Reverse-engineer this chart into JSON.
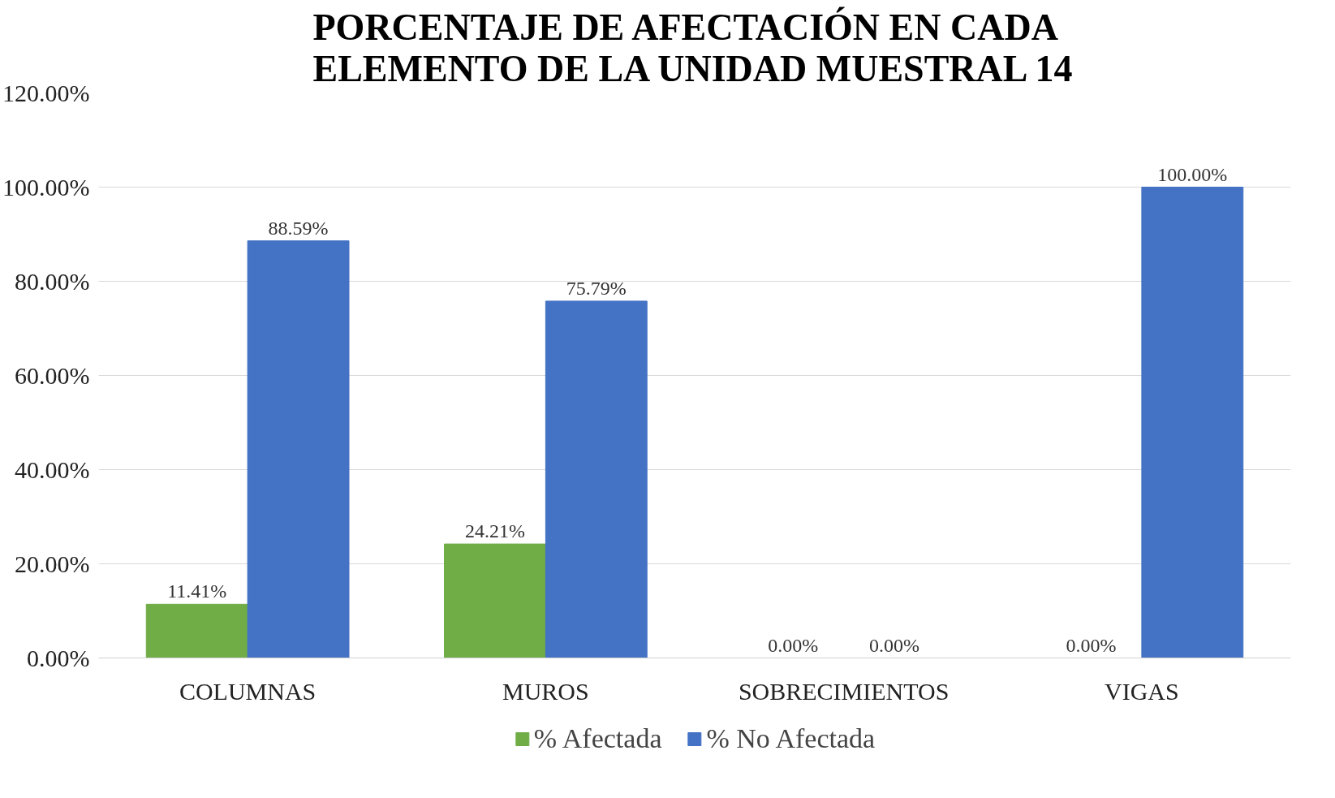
{
  "chart_data": {
    "type": "bar",
    "title": "PORCENTAJE DE AFECTACIÓN EN CADA\nELEMENTO DE LA UNIDAD MUESTRAL 14",
    "categories": [
      "COLUMNAS",
      "MUROS",
      "SOBRECIMIENTOS",
      "VIGAS"
    ],
    "series": [
      {
        "name": "% Afectada",
        "color": "#70ad47",
        "values": [
          11.41,
          24.21,
          0,
          0
        ],
        "value_labels": [
          "11.41%",
          "24.21%",
          "0.00%",
          "0.00%"
        ]
      },
      {
        "name": "% No Afectada",
        "color": "#4472c4",
        "values": [
          88.59,
          75.79,
          0,
          100
        ],
        "value_labels": [
          "88.59%",
          "75.79%",
          "0.00%",
          "100.00%"
        ]
      }
    ],
    "ylim": [
      0,
      120
    ],
    "yticks": [
      {
        "value": 0,
        "label": "0.00%"
      },
      {
        "value": 20,
        "label": "20.00%"
      },
      {
        "value": 40,
        "label": "40.00%"
      },
      {
        "value": 60,
        "label": "60.00%"
      },
      {
        "value": 80,
        "label": "80.00%"
      },
      {
        "value": 100,
        "label": "100.00%"
      },
      {
        "value": 120,
        "label": "120.00%"
      }
    ],
    "grid": "y",
    "legend": "bottom"
  }
}
